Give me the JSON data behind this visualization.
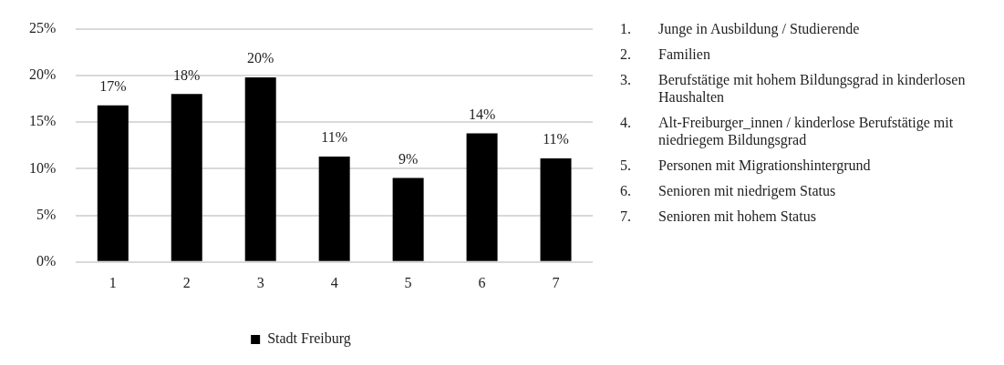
{
  "chart_data": {
    "type": "bar",
    "categories": [
      "1",
      "2",
      "3",
      "4",
      "5",
      "6",
      "7"
    ],
    "series": [
      {
        "name": "Stadt Freiburg",
        "color": "#000000",
        "values": [
          16.8,
          18.0,
          19.8,
          11.3,
          9.0,
          13.8,
          11.1
        ],
        "value_labels": [
          "17%",
          "18%",
          "20%",
          "11%",
          "9%",
          "14%",
          "11%"
        ]
      }
    ],
    "ylim": [
      0,
      25
    ],
    "yticks": [
      {
        "value": 0,
        "label": "0%"
      },
      {
        "value": 5,
        "label": "5%"
      },
      {
        "value": 10,
        "label": "10%"
      },
      {
        "value": 15,
        "label": "15%"
      },
      {
        "value": 20,
        "label": "20%"
      },
      {
        "value": 25,
        "label": "25%"
      }
    ],
    "grid": "y",
    "legend": "bottom",
    "annotations": [
      "1. Junge in Ausbildung / Studierende",
      "2. Familien",
      "3. Berufstätige mit hohem Bildungsgrad in kinderlosen Haushalten",
      "4. Alt-Freiburger_innen / kinderlose Berufstätige mit niedriegem Bildungsgrad",
      "5. Personen mit Migrationshintergrund",
      "6. Senioren mit niedrigem Status",
      "7. Senioren mit hohem Status"
    ]
  }
}
